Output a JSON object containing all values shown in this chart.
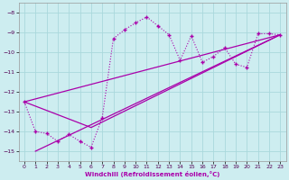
{
  "xlabel": "Windchill (Refroidissement éolien,°C)",
  "bg_color": "#cdedf0",
  "grid_color": "#aad8dc",
  "line_color": "#aa00aa",
  "xlim": [
    -0.5,
    23.5
  ],
  "ylim": [
    -15.5,
    -7.5
  ],
  "yticks": [
    -15,
    -14,
    -13,
    -12,
    -11,
    -10,
    -9,
    -8
  ],
  "xticks": [
    0,
    1,
    2,
    3,
    4,
    5,
    6,
    7,
    8,
    9,
    10,
    11,
    12,
    13,
    14,
    15,
    16,
    17,
    18,
    19,
    20,
    21,
    22,
    23
  ],
  "main_x": [
    0,
    1,
    2,
    3,
    4,
    5,
    6,
    7,
    8,
    9,
    10,
    11,
    12,
    13,
    14,
    15,
    16,
    17,
    18,
    19,
    20,
    21,
    22,
    23
  ],
  "main_y": [
    -12.5,
    -14.0,
    -14.1,
    -14.5,
    -14.15,
    -14.5,
    -14.8,
    -13.3,
    -9.3,
    -8.85,
    -8.5,
    -8.2,
    -8.65,
    -9.1,
    -10.4,
    -9.15,
    -10.5,
    -10.2,
    -9.75,
    -10.6,
    -10.75,
    -9.05,
    -9.05,
    -9.1
  ],
  "line1_x": [
    0,
    23
  ],
  "line1_y": [
    -12.5,
    -9.1
  ],
  "line2_x": [
    1,
    23
  ],
  "line2_y": [
    -15.0,
    -9.1
  ],
  "line3_x": [
    0,
    6,
    23
  ],
  "line3_y": [
    -12.5,
    -13.8,
    -9.1
  ]
}
